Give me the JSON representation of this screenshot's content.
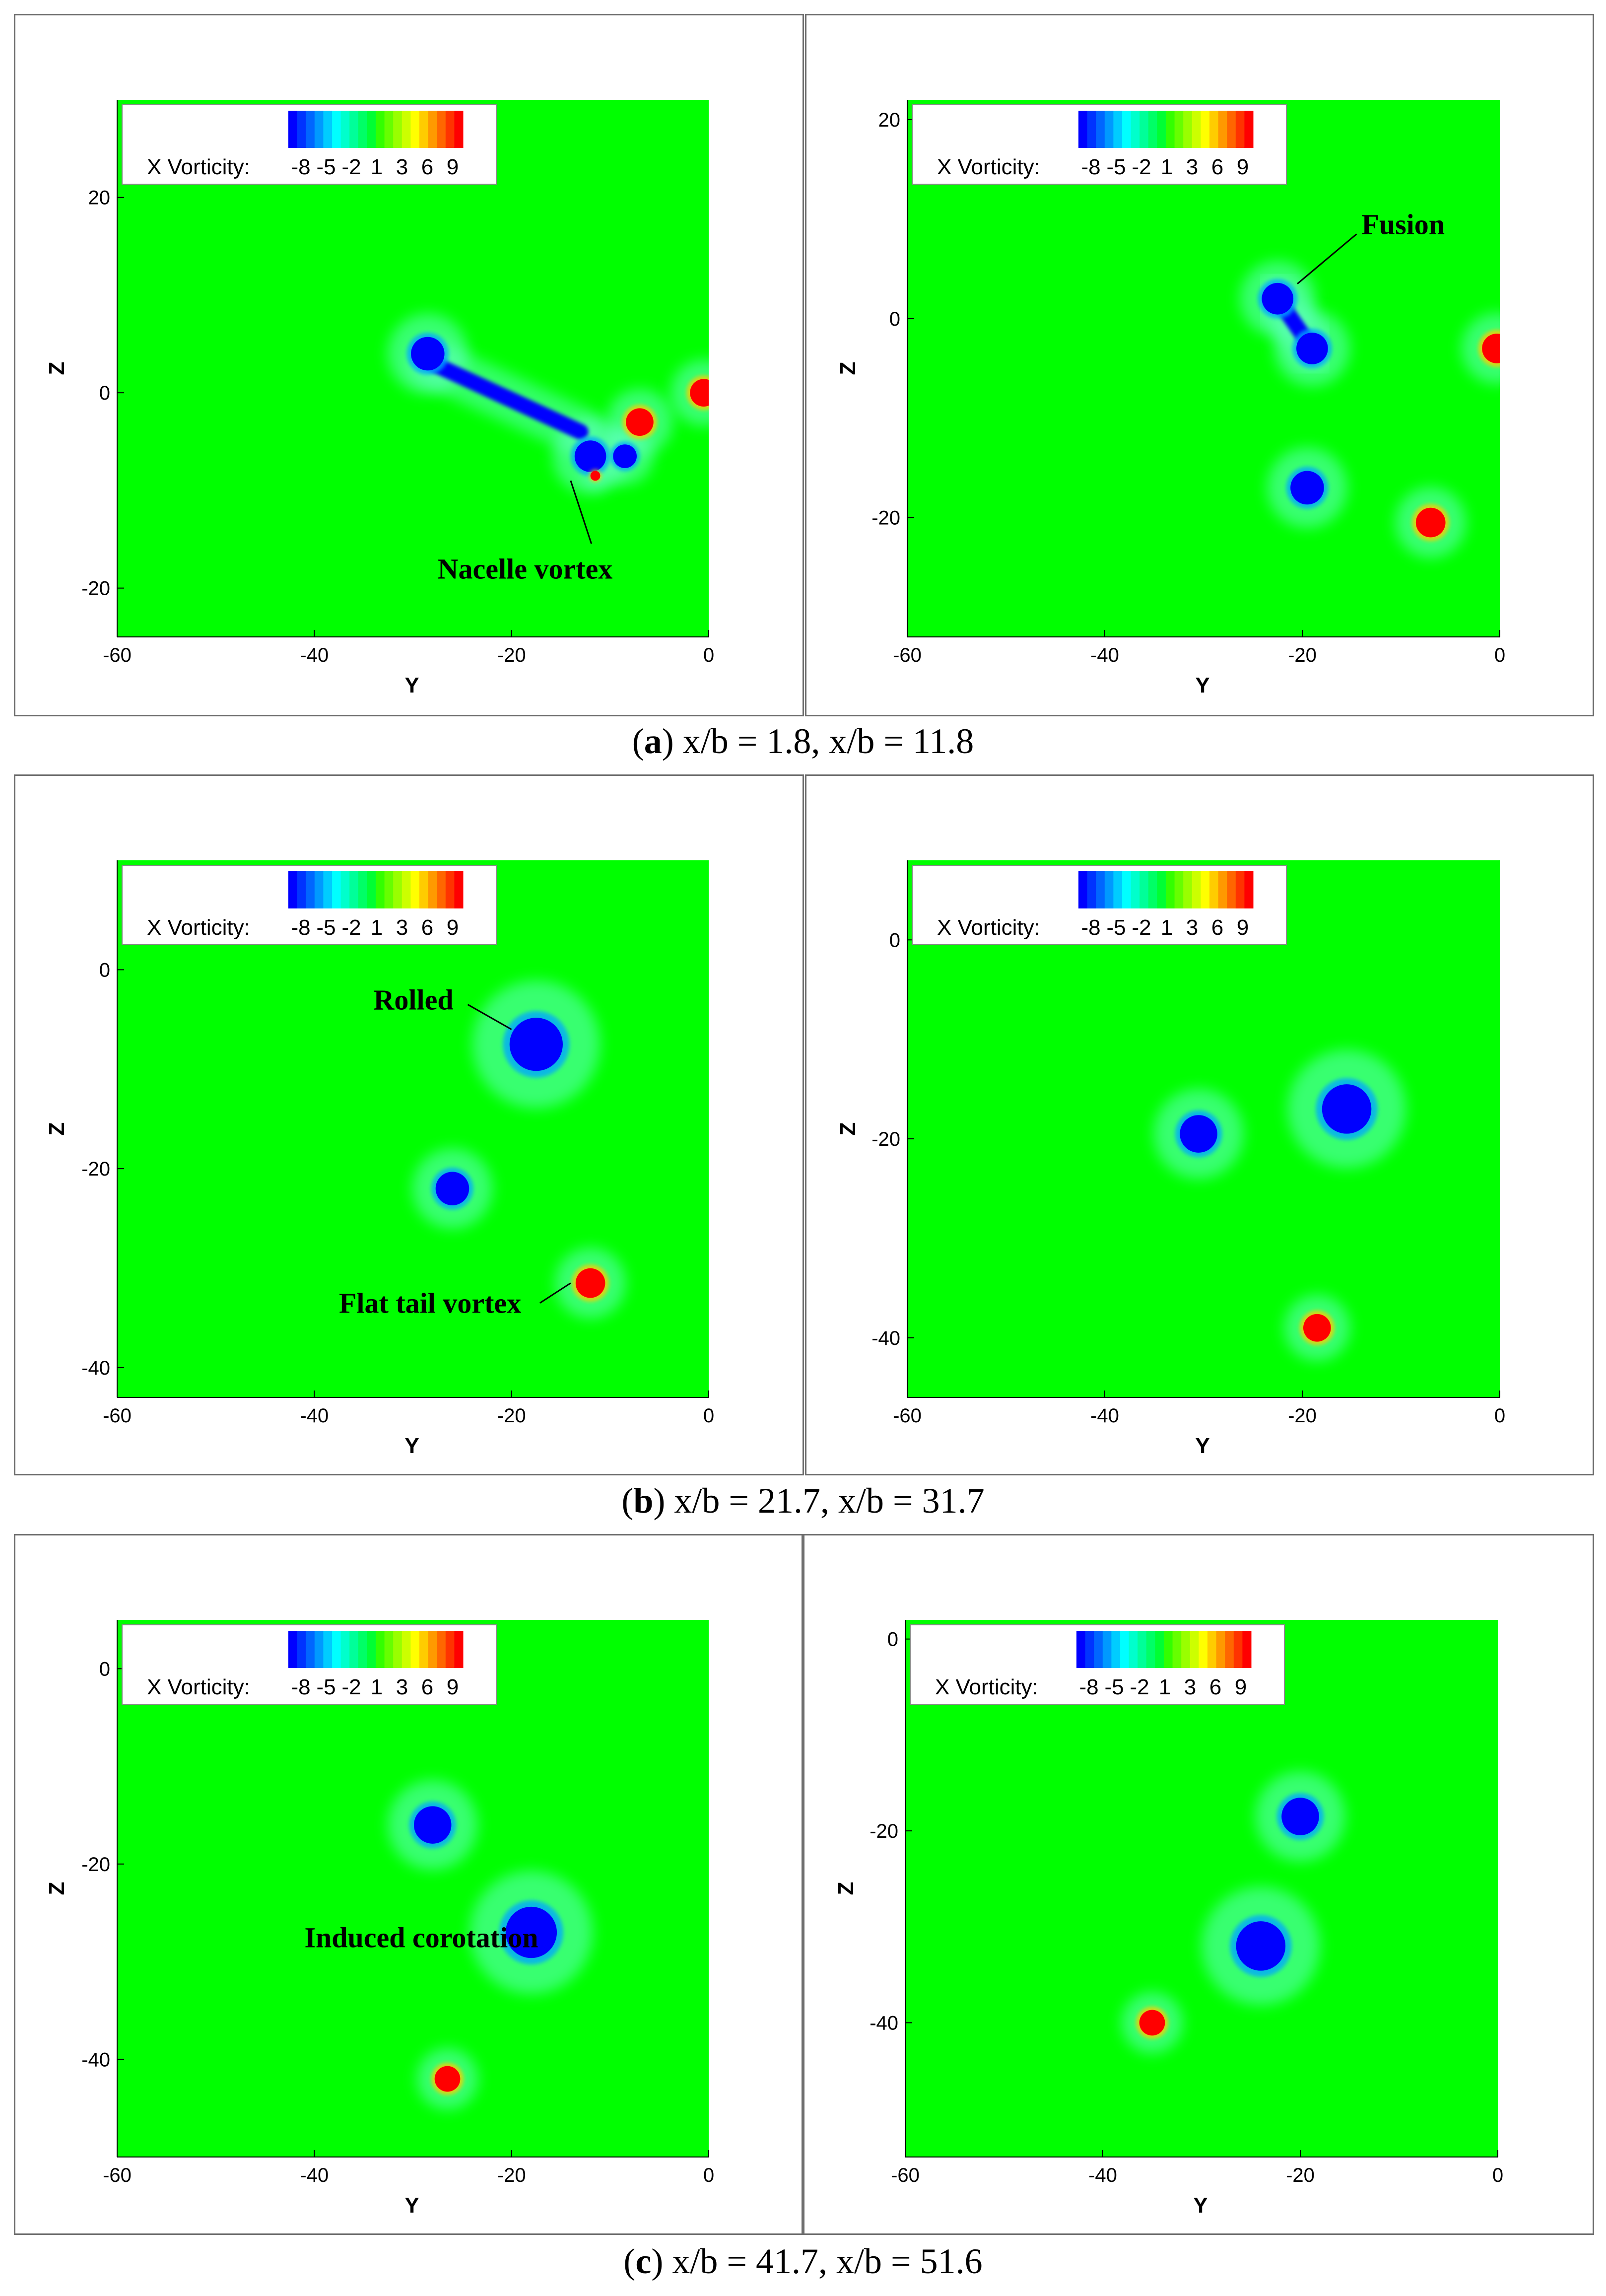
{
  "colors": {
    "background_field": "#00ff00",
    "negative_vortex": "#0000ff",
    "positive_vortex": "#ff0000",
    "halo": "#66ffcc"
  },
  "colorbar_colors": [
    "#0000ff",
    "#0033ff",
    "#0066ff",
    "#0099ff",
    "#00ccff",
    "#00ffff",
    "#00ffcc",
    "#00ff99",
    "#00ff66",
    "#00ff33",
    "#33ff00",
    "#66ff00",
    "#99ff00",
    "#ccff00",
    "#ffff00",
    "#ffcc00",
    "#ff9900",
    "#ff6600",
    "#ff3300",
    "#ff0000"
  ],
  "legend": {
    "label": "X Vorticity:",
    "ticks": [
      "-8",
      "-5",
      "-2",
      "1",
      "3",
      "6",
      "9"
    ]
  },
  "captions": [
    {
      "letter": "a",
      "rest": " x/b = 1.8, x/b = 11.8"
    },
    {
      "letter": "b",
      "rest": " x/b = 21.7, x/b = 31.7"
    },
    {
      "letter": "c",
      "rest": " x/b = 41.7, x/b = 51.6"
    }
  ],
  "chart_data": [
    {
      "type": "heatmap",
      "panel": "a-left",
      "xlabel": "Y",
      "ylabel": "Z",
      "xlim": [
        -60,
        0
      ],
      "ylim": [
        -25,
        30
      ],
      "xticks": [
        -60,
        -40,
        -20,
        0
      ],
      "yticks": [
        -20,
        0,
        20
      ],
      "vortices": [
        {
          "y": -28.5,
          "z": 4,
          "sign": "negative",
          "radius": 1.7
        },
        {
          "y": -12,
          "z": -6.5,
          "sign": "negative",
          "radius": 1.6
        },
        {
          "y": -8.5,
          "z": -6.5,
          "sign": "negative",
          "radius": 1.2
        },
        {
          "y": -7,
          "z": -3,
          "sign": "positive",
          "radius": 1.4
        },
        {
          "y": -0.5,
          "z": 0,
          "sign": "positive",
          "radius": 1.4
        },
        {
          "y": -11.5,
          "z": -8.5,
          "sign": "positive",
          "radius": 0.5
        }
      ],
      "sheets": [
        {
          "from": [
            -28,
            3
          ],
          "to": [
            -13,
            -4
          ],
          "sign": "negative",
          "width": 1.6
        }
      ],
      "annotations": [
        {
          "text": "Nacelle vortex",
          "text_y": -27.5,
          "text_z": -18,
          "arrow_to_y": -14,
          "arrow_to_z": -9
        }
      ]
    },
    {
      "type": "heatmap",
      "panel": "a-right",
      "xlabel": "Y",
      "ylabel": "Z",
      "xlim": [
        -60,
        0
      ],
      "ylim": [
        -32,
        22
      ],
      "xticks": [
        -60,
        -40,
        -20,
        0
      ],
      "yticks": [
        -20,
        0,
        20
      ],
      "vortices": [
        {
          "y": -22.5,
          "z": 2,
          "sign": "negative",
          "radius": 1.6
        },
        {
          "y": -19,
          "z": -3,
          "sign": "negative",
          "radius": 1.6
        },
        {
          "y": -19.5,
          "z": -17,
          "sign": "negative",
          "radius": 1.7
        },
        {
          "y": -7,
          "z": -20.5,
          "sign": "positive",
          "radius": 1.5
        },
        {
          "y": -0.3,
          "z": -3,
          "sign": "positive",
          "radius": 1.5
        }
      ],
      "sheets": [
        {
          "from": [
            -22.5,
            2
          ],
          "to": [
            -19,
            -3
          ],
          "sign": "negative",
          "width": 1.6
        }
      ],
      "annotations": [
        {
          "text": "Fusion",
          "text_y": -14,
          "text_z": 9.5,
          "arrow_to_y": -20.5,
          "arrow_to_z": 3.5
        }
      ]
    },
    {
      "type": "heatmap",
      "panel": "b-left",
      "xlabel": "Y",
      "ylabel": "Z",
      "xlim": [
        -60,
        0
      ],
      "ylim": [
        -43,
        11
      ],
      "xticks": [
        -60,
        -40,
        -20,
        0
      ],
      "yticks": [
        -40,
        -20,
        0
      ],
      "vortices": [
        {
          "y": -17.5,
          "z": -7.5,
          "sign": "negative",
          "radius": 2.7
        },
        {
          "y": -26,
          "z": -22,
          "sign": "negative",
          "radius": 1.7
        },
        {
          "y": -12,
          "z": -31.5,
          "sign": "positive",
          "radius": 1.5
        }
      ],
      "sheets": [],
      "annotations": [
        {
          "text": "Rolled",
          "text_y": -34,
          "text_z": -3,
          "arrow_to_y": -20,
          "arrow_to_z": -6
        },
        {
          "text": "Flat tail vortex",
          "text_y": -37.5,
          "text_z": -33.5,
          "arrow_to_y": -14,
          "arrow_to_z": -31.5
        }
      ]
    },
    {
      "type": "heatmap",
      "panel": "b-right",
      "xlabel": "Y",
      "ylabel": "Z",
      "xlim": [
        -60,
        0
      ],
      "ylim": [
        -46,
        8
      ],
      "xticks": [
        -60,
        -40,
        -20,
        0
      ],
      "yticks": [
        -40,
        -20,
        0
      ],
      "vortices": [
        {
          "y": -15.5,
          "z": -17,
          "sign": "negative",
          "radius": 2.5
        },
        {
          "y": -30.5,
          "z": -19.5,
          "sign": "negative",
          "radius": 1.9
        },
        {
          "y": -18.5,
          "z": -39,
          "sign": "positive",
          "radius": 1.4
        }
      ],
      "sheets": [],
      "annotations": []
    },
    {
      "type": "heatmap",
      "panel": "c-left",
      "xlabel": "Y",
      "ylabel": "Z",
      "xlim": [
        -60,
        0
      ],
      "ylim": [
        -50,
        5
      ],
      "xticks": [
        -60,
        -40,
        -20,
        0
      ],
      "yticks": [
        -40,
        -20,
        0
      ],
      "vortices": [
        {
          "y": -28,
          "z": -16,
          "sign": "negative",
          "radius": 1.9
        },
        {
          "y": -18,
          "z": -27,
          "sign": "negative",
          "radius": 2.6
        },
        {
          "y": -26.5,
          "z": -42,
          "sign": "positive",
          "radius": 1.3
        }
      ],
      "sheets": [],
      "annotations": [
        {
          "text": "Induced corotation",
          "text_y": -41,
          "text_z": -27.5,
          "arrow_to_y": null,
          "arrow_to_z": null
        }
      ]
    },
    {
      "type": "heatmap",
      "panel": "c-right",
      "xlabel": "Y",
      "ylabel": "Z",
      "xlim": [
        -60,
        0
      ],
      "ylim": [
        -54,
        2
      ],
      "xticks": [
        -60,
        -40,
        -20,
        0
      ],
      "yticks": [
        -40,
        -20,
        0
      ],
      "vortices": [
        {
          "y": -20,
          "z": -18.5,
          "sign": "negative",
          "radius": 1.9
        },
        {
          "y": -24,
          "z": -32,
          "sign": "negative",
          "radius": 2.5
        },
        {
          "y": -35,
          "z": -40,
          "sign": "positive",
          "radius": 1.3
        }
      ],
      "sheets": [],
      "annotations": []
    }
  ]
}
